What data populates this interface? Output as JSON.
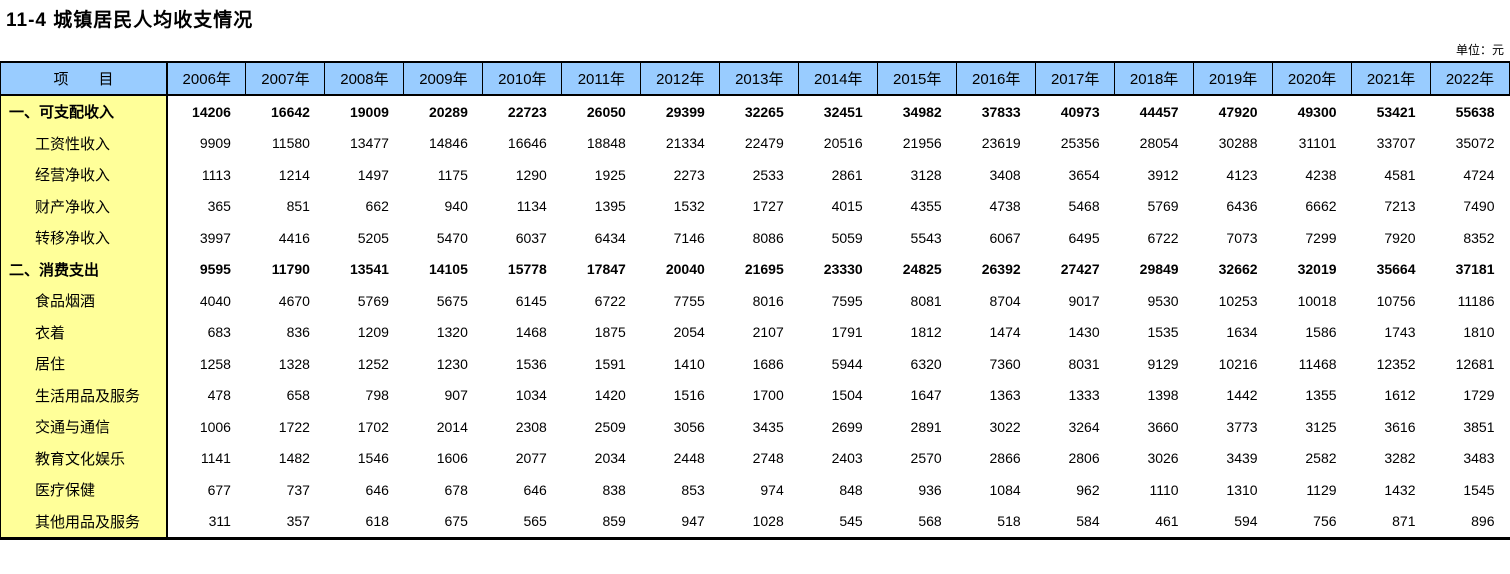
{
  "title": "11-4 城镇居民人均收支情况",
  "unit_label": "单位：元",
  "colors": {
    "header_bg": "#99CCFF",
    "label_column_bg": "#FFFF99",
    "border": "#000000",
    "text": "#000000"
  },
  "table": {
    "header_item_label": "项　　目",
    "years": [
      "2006年",
      "2007年",
      "2008年",
      "2009年",
      "2010年",
      "2011年",
      "2012年",
      "2013年",
      "2014年",
      "2015年",
      "2016年",
      "2017年",
      "2018年",
      "2019年",
      "2020年",
      "2021年",
      "2022年"
    ],
    "rows": [
      {
        "label": "一、可支配收入",
        "bold": true,
        "indent": false,
        "values": [
          14206,
          16642,
          19009,
          20289,
          22723,
          26050,
          29399,
          32265,
          32451,
          34982,
          37833,
          40973,
          44457,
          47920,
          49300,
          53421,
          55638
        ]
      },
      {
        "label": "工资性收入",
        "bold": false,
        "indent": true,
        "values": [
          9909,
          11580,
          13477,
          14846,
          16646,
          18848,
          21334,
          22479,
          20516,
          21956,
          23619,
          25356,
          28054,
          30288,
          31101,
          33707,
          35072
        ]
      },
      {
        "label": "经营净收入",
        "bold": false,
        "indent": true,
        "values": [
          1113,
          1214,
          1497,
          1175,
          1290,
          1925,
          2273,
          2533,
          2861,
          3128,
          3408,
          3654,
          3912,
          4123,
          4238,
          4581,
          4724
        ]
      },
      {
        "label": "财产净收入",
        "bold": false,
        "indent": true,
        "values": [
          365,
          851,
          662,
          940,
          1134,
          1395,
          1532,
          1727,
          4015,
          4355,
          4738,
          5468,
          5769,
          6436,
          6662,
          7213,
          7490
        ]
      },
      {
        "label": "转移净收入",
        "bold": false,
        "indent": true,
        "values": [
          3997,
          4416,
          5205,
          5470,
          6037,
          6434,
          7146,
          8086,
          5059,
          5543,
          6067,
          6495,
          6722,
          7073,
          7299,
          7920,
          8352
        ]
      },
      {
        "label": "二、消费支出",
        "bold": true,
        "indent": false,
        "values": [
          9595,
          11790,
          13541,
          14105,
          15778,
          17847,
          20040,
          21695,
          23330,
          24825,
          26392,
          27427,
          29849,
          32662,
          32019,
          35664,
          37181
        ]
      },
      {
        "label": "食品烟酒",
        "bold": false,
        "indent": true,
        "values": [
          4040,
          4670,
          5769,
          5675,
          6145,
          6722,
          7755,
          8016,
          7595,
          8081,
          8704,
          9017,
          9530,
          10253,
          10018,
          10756,
          11186
        ]
      },
      {
        "label": "衣着",
        "bold": false,
        "indent": true,
        "values": [
          683,
          836,
          1209,
          1320,
          1468,
          1875,
          2054,
          2107,
          1791,
          1812,
          1474,
          1430,
          1535,
          1634,
          1586,
          1743,
          1810
        ]
      },
      {
        "label": "居住",
        "bold": false,
        "indent": true,
        "values": [
          1258,
          1328,
          1252,
          1230,
          1536,
          1591,
          1410,
          1686,
          5944,
          6320,
          7360,
          8031,
          9129,
          10216,
          11468,
          12352,
          12681
        ]
      },
      {
        "label": "生活用品及服务",
        "bold": false,
        "indent": true,
        "values": [
          478,
          658,
          798,
          907,
          1034,
          1420,
          1516,
          1700,
          1504,
          1647,
          1363,
          1333,
          1398,
          1442,
          1355,
          1612,
          1729
        ]
      },
      {
        "label": "交通与通信",
        "bold": false,
        "indent": true,
        "values": [
          1006,
          1722,
          1702,
          2014,
          2308,
          2509,
          3056,
          3435,
          2699,
          2891,
          3022,
          3264,
          3660,
          3773,
          3125,
          3616,
          3851
        ]
      },
      {
        "label": "教育文化娱乐",
        "bold": false,
        "indent": true,
        "values": [
          1141,
          1482,
          1546,
          1606,
          2077,
          2034,
          2448,
          2748,
          2403,
          2570,
          2866,
          2806,
          3026,
          3439,
          2582,
          3282,
          3483
        ]
      },
      {
        "label": "医疗保健",
        "bold": false,
        "indent": true,
        "values": [
          677,
          737,
          646,
          678,
          646,
          838,
          853,
          974,
          848,
          936,
          1084,
          962,
          1110,
          1310,
          1129,
          1432,
          1545
        ]
      },
      {
        "label": "其他用品及服务",
        "bold": false,
        "indent": true,
        "values": [
          311,
          357,
          618,
          675,
          565,
          859,
          947,
          1028,
          545,
          568,
          518,
          584,
          461,
          594,
          756,
          871,
          896
        ]
      }
    ]
  }
}
